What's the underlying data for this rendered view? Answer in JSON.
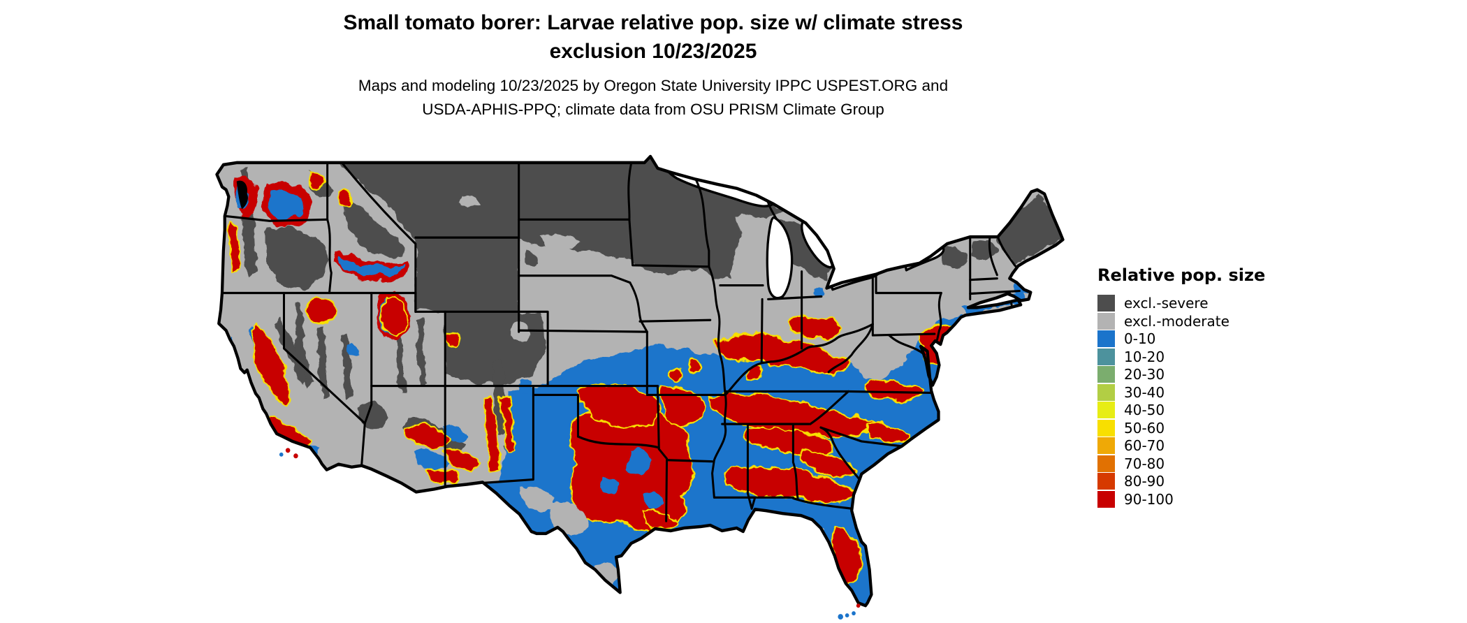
{
  "title": {
    "line1": "Small tomato borer: Larvae relative pop. size w/ climate stress",
    "line2": "exclusion 10/23/2025"
  },
  "subtitle": {
    "line1": "Maps and modeling 10/23/2025 by Oregon State University IPPC USPEST.ORG and",
    "line2": "USDA-APHIS-PPQ; climate data from OSU PRISM Climate Group"
  },
  "legend": {
    "title": "Relative pop. size",
    "items": [
      {
        "label": "excl.-severe",
        "color": "#4D4D4D"
      },
      {
        "label": "excl.-moderate",
        "color": "#B3B3B3"
      },
      {
        "label": "0-10",
        "color": "#1B74CB"
      },
      {
        "label": "10-20",
        "color": "#4D929D"
      },
      {
        "label": "20-30",
        "color": "#7BAD6E"
      },
      {
        "label": "30-40",
        "color": "#B2CE44"
      },
      {
        "label": "40-50",
        "color": "#E7ED14"
      },
      {
        "label": "50-60",
        "color": "#F8DF00"
      },
      {
        "label": "60-70",
        "color": "#EFA906"
      },
      {
        "label": "70-80",
        "color": "#E17102"
      },
      {
        "label": "80-90",
        "color": "#D63A00"
      },
      {
        "label": "90-100",
        "color": "#C80000"
      }
    ]
  },
  "map": {
    "region": "Contiguous United States",
    "type": "raster choropleth",
    "background_color": "#FFFFFF",
    "border_color": "#000000",
    "lake_color": "#FFFFFF"
  }
}
